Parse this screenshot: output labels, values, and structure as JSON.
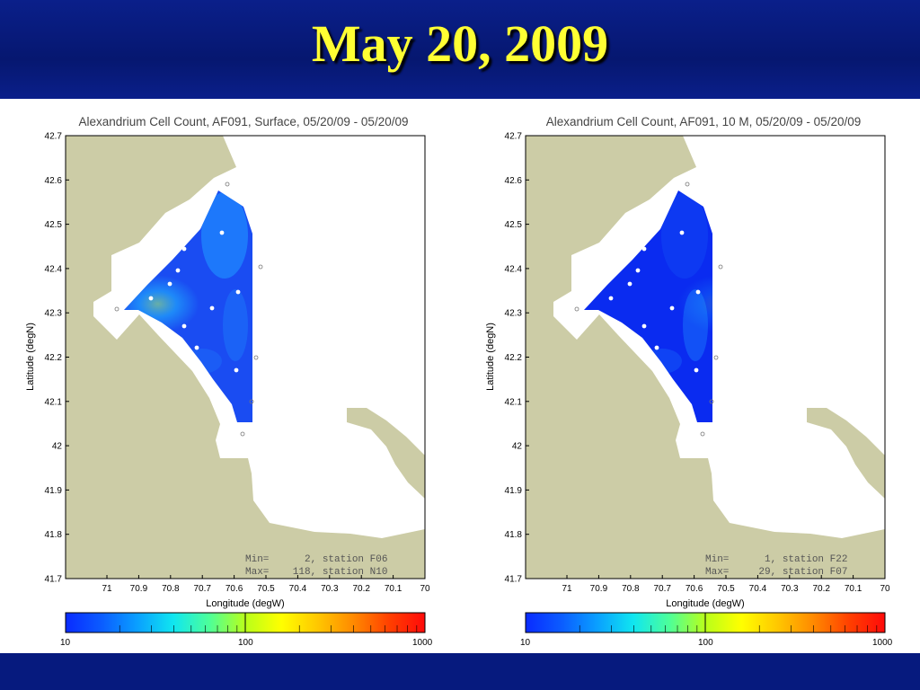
{
  "slide": {
    "title": "May 20, 2009"
  },
  "maps": [
    {
      "title": "Alexandrium Cell Count, AF091, Surface, 05/20/09 - 05/20/09",
      "xlabel": "Longitude (degW)",
      "ylabel": "Latitude (degN)",
      "x_ticks": [
        "71",
        "70.9",
        "70.8",
        "70.7",
        "70.6",
        "70.5",
        "70.4",
        "70.3",
        "70.2",
        "70.1",
        "70"
      ],
      "y_ticks": [
        "42.7",
        "42.6",
        "42.5",
        "42.4",
        "42.3",
        "42.2",
        "42.1",
        "42",
        "41.9",
        "41.8",
        "41.7"
      ],
      "min_line": "Min=      2, station F06",
      "max_line": "Max=    118, station N10",
      "hotspot": {
        "lon": 70.84,
        "lat": 42.32,
        "level": 0.55
      },
      "colorbar": {
        "labels": [
          "10",
          "100",
          "1000"
        ],
        "scale": "log"
      },
      "colors": {
        "land": "#cccca6",
        "field": "#1a4cf2"
      }
    },
    {
      "title": "Alexandrium Cell Count, AF091, 10 M, 05/20/09 - 05/20/09",
      "xlabel": "Longitude (degW)",
      "ylabel": "Latitude (degN)",
      "x_ticks": [
        "71",
        "70.9",
        "70.8",
        "70.7",
        "70.6",
        "70.5",
        "70.4",
        "70.3",
        "70.2",
        "70.1",
        "70"
      ],
      "y_ticks": [
        "42.7",
        "42.6",
        "42.5",
        "42.4",
        "42.3",
        "42.2",
        "42.1",
        "42",
        "41.9",
        "41.8",
        "41.7"
      ],
      "min_line": "Min=      1, station F22",
      "max_line": "Max=     29, station F07",
      "hotspot": {
        "lon": 70.52,
        "lat": 42.32,
        "level": 0.2
      },
      "colorbar": {
        "labels": [
          "10",
          "100",
          "1000"
        ],
        "scale": "log"
      },
      "colors": {
        "land": "#cccca6",
        "field": "#0a2bf0"
      }
    }
  ]
}
